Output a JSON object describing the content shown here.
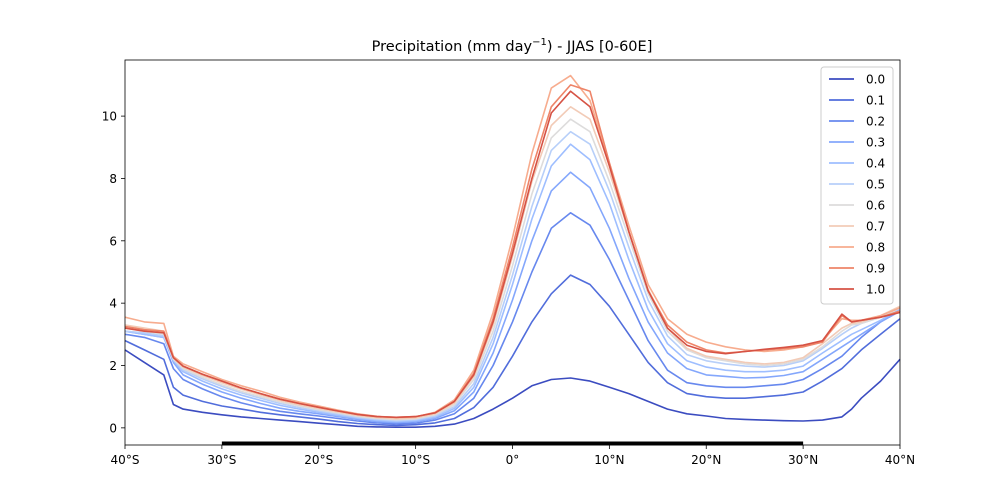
{
  "chart_data": {
    "type": "line",
    "title": "Precipitation (mm day",
    "title_sup": "−1",
    "title_suffix": ") - JJAS [0-60E]",
    "xlabel": "",
    "ylabel": "",
    "xlim": [
      -40,
      40
    ],
    "ylim": [
      -0.55,
      11.8
    ],
    "xticks": [
      -40,
      -30,
      -20,
      -10,
      0,
      10,
      20,
      30,
      40
    ],
    "xtick_labels": [
      "40°S",
      "30°S",
      "20°S",
      "10°S",
      "0°",
      "10°N",
      "20°N",
      "30°N",
      "40°N"
    ],
    "yticks": [
      0,
      2,
      4,
      6,
      8,
      10
    ],
    "ytick_labels": [
      "0",
      "2",
      "4",
      "6",
      "8",
      "10"
    ],
    "grid": false,
    "legend_position": "top-right",
    "baseline_bar_x": [
      -30,
      30
    ],
    "x": [
      -40,
      -38,
      -36,
      -35,
      -34,
      -32,
      -30,
      -28,
      -26,
      -24,
      -22,
      -20,
      -18,
      -16,
      -14,
      -12,
      -10,
      -8,
      -6,
      -4,
      -2,
      0,
      2,
      4,
      6,
      8,
      10,
      12,
      14,
      16,
      18,
      20,
      22,
      24,
      26,
      28,
      30,
      32,
      34,
      35,
      36,
      38,
      40
    ],
    "series": [
      {
        "name": "0.0",
        "color": "#3b4cc0",
        "values": [
          2.5,
          2.1,
          1.7,
          0.75,
          0.6,
          0.5,
          0.42,
          0.35,
          0.3,
          0.25,
          0.2,
          0.15,
          0.1,
          0.05,
          0.03,
          0.02,
          0.02,
          0.05,
          0.12,
          0.3,
          0.6,
          0.95,
          1.35,
          1.55,
          1.6,
          1.5,
          1.3,
          1.1,
          0.85,
          0.6,
          0.45,
          0.38,
          0.3,
          0.27,
          0.25,
          0.23,
          0.22,
          0.25,
          0.35,
          0.6,
          0.95,
          1.5,
          2.2
        ]
      },
      {
        "name": "0.1",
        "color": "#516ddb",
        "values": [
          2.8,
          2.5,
          2.2,
          1.3,
          1.05,
          0.85,
          0.7,
          0.6,
          0.5,
          0.42,
          0.35,
          0.28,
          0.2,
          0.14,
          0.1,
          0.08,
          0.1,
          0.16,
          0.3,
          0.65,
          1.3,
          2.3,
          3.4,
          4.3,
          4.9,
          4.6,
          3.9,
          3.0,
          2.1,
          1.45,
          1.1,
          1.0,
          0.95,
          0.95,
          1.0,
          1.05,
          1.15,
          1.5,
          1.9,
          2.2,
          2.5,
          3.0,
          3.5
        ]
      },
      {
        "name": "0.2",
        "color": "#6788ee",
        "values": [
          3.0,
          2.9,
          2.7,
          1.9,
          1.55,
          1.25,
          1.0,
          0.8,
          0.65,
          0.53,
          0.45,
          0.38,
          0.3,
          0.22,
          0.16,
          0.13,
          0.15,
          0.25,
          0.45,
          0.95,
          2.0,
          3.4,
          5.0,
          6.4,
          6.9,
          6.5,
          5.4,
          4.1,
          2.8,
          1.85,
          1.45,
          1.35,
          1.3,
          1.3,
          1.35,
          1.4,
          1.55,
          1.9,
          2.3,
          2.6,
          2.9,
          3.4,
          3.75
        ]
      },
      {
        "name": "0.3",
        "color": "#84a7fc",
        "values": [
          3.1,
          3.0,
          2.9,
          2.1,
          1.7,
          1.4,
          1.15,
          0.95,
          0.78,
          0.63,
          0.53,
          0.45,
          0.36,
          0.27,
          0.2,
          0.17,
          0.2,
          0.3,
          0.55,
          1.15,
          2.4,
          4.1,
          6.0,
          7.6,
          8.2,
          7.7,
          6.4,
          4.8,
          3.4,
          2.4,
          1.9,
          1.7,
          1.65,
          1.6,
          1.62,
          1.68,
          1.8,
          2.2,
          2.6,
          2.8,
          3.0,
          3.4,
          3.75
        ]
      },
      {
        "name": "0.4",
        "color": "#9ebeff",
        "values": [
          3.1,
          3.0,
          2.9,
          2.15,
          1.8,
          1.5,
          1.25,
          1.05,
          0.88,
          0.72,
          0.6,
          0.5,
          0.4,
          0.31,
          0.24,
          0.2,
          0.23,
          0.34,
          0.62,
          1.3,
          2.7,
          4.6,
          6.7,
          8.4,
          9.1,
          8.6,
          7.2,
          5.4,
          3.8,
          2.7,
          2.15,
          1.95,
          1.85,
          1.8,
          1.8,
          1.85,
          1.98,
          2.4,
          2.8,
          3.0,
          3.15,
          3.45,
          3.8
        ]
      },
      {
        "name": "0.5",
        "color": "#b7cff9",
        "values": [
          3.1,
          3.05,
          2.95,
          2.2,
          1.85,
          1.57,
          1.33,
          1.12,
          0.95,
          0.78,
          0.65,
          0.54,
          0.44,
          0.34,
          0.27,
          0.23,
          0.26,
          0.38,
          0.68,
          1.42,
          2.9,
          4.9,
          7.1,
          8.9,
          9.5,
          9.1,
          7.6,
          5.8,
          4.1,
          2.95,
          2.35,
          2.15,
          2.05,
          1.98,
          1.95,
          2.0,
          2.15,
          2.55,
          3.0,
          3.2,
          3.35,
          3.55,
          3.85
        ]
      },
      {
        "name": "0.6",
        "color": "#dddcdc",
        "values": [
          3.2,
          3.1,
          3.0,
          2.2,
          1.9,
          1.62,
          1.38,
          1.17,
          1.0,
          0.83,
          0.7,
          0.58,
          0.48,
          0.37,
          0.3,
          0.26,
          0.29,
          0.42,
          0.74,
          1.55,
          3.1,
          5.2,
          7.5,
          9.3,
          9.9,
          9.5,
          7.9,
          6.1,
          4.3,
          3.1,
          2.5,
          2.25,
          2.15,
          2.05,
          2.0,
          2.05,
          2.2,
          2.6,
          3.1,
          3.3,
          3.35,
          3.55,
          3.85
        ]
      },
      {
        "name": "0.7",
        "color": "#f2cbb7",
        "values": [
          3.3,
          3.2,
          3.1,
          2.25,
          1.95,
          1.68,
          1.45,
          1.24,
          1.06,
          0.88,
          0.74,
          0.62,
          0.51,
          0.4,
          0.33,
          0.29,
          0.32,
          0.45,
          0.8,
          1.65,
          3.3,
          5.5,
          7.9,
          9.7,
          10.3,
          9.9,
          8.2,
          6.3,
          4.45,
          3.2,
          2.55,
          2.3,
          2.2,
          2.1,
          2.05,
          2.1,
          2.25,
          2.7,
          3.2,
          3.35,
          3.4,
          3.6,
          3.9
        ]
      },
      {
        "name": "0.8",
        "color": "#f7ac8e",
        "values": [
          3.55,
          3.4,
          3.35,
          2.3,
          2.05,
          1.8,
          1.55,
          1.35,
          1.18,
          0.98,
          0.83,
          0.7,
          0.57,
          0.45,
          0.37,
          0.33,
          0.35,
          0.5,
          0.9,
          1.85,
          3.7,
          6.1,
          8.8,
          10.9,
          11.3,
          10.5,
          8.5,
          6.5,
          4.6,
          3.5,
          3.0,
          2.75,
          2.6,
          2.5,
          2.45,
          2.5,
          2.6,
          2.8,
          3.5,
          3.45,
          3.45,
          3.6,
          3.85
        ]
      },
      {
        "name": "0.9",
        "color": "#ee8468",
        "values": [
          3.25,
          3.15,
          3.1,
          2.25,
          1.98,
          1.72,
          1.5,
          1.28,
          1.1,
          0.92,
          0.78,
          0.66,
          0.54,
          0.43,
          0.36,
          0.34,
          0.36,
          0.48,
          0.85,
          1.75,
          3.5,
          5.8,
          8.3,
          10.3,
          11.0,
          10.8,
          8.5,
          6.3,
          4.4,
          3.3,
          2.75,
          2.5,
          2.4,
          2.45,
          2.5,
          2.55,
          2.6,
          2.75,
          3.6,
          3.4,
          3.45,
          3.55,
          3.75
        ]
      },
      {
        "name": "1.0",
        "color": "#d65244",
        "values": [
          3.2,
          3.1,
          3.05,
          2.25,
          1.98,
          1.72,
          1.5,
          1.28,
          1.1,
          0.92,
          0.78,
          0.66,
          0.54,
          0.43,
          0.36,
          0.34,
          0.36,
          0.48,
          0.85,
          1.7,
          3.4,
          5.6,
          8.0,
          10.1,
          10.8,
          10.3,
          8.4,
          6.3,
          4.4,
          3.2,
          2.65,
          2.45,
          2.38,
          2.45,
          2.52,
          2.58,
          2.65,
          2.8,
          3.65,
          3.4,
          3.45,
          3.55,
          3.7
        ]
      }
    ]
  }
}
